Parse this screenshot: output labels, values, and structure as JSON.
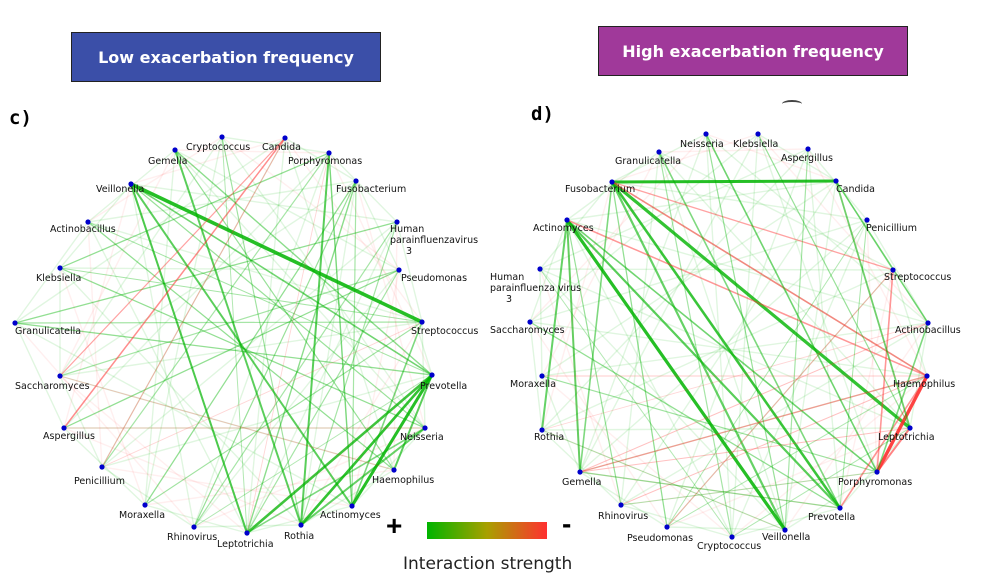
{
  "colors": {
    "low_banner": "#3b4fa8",
    "high_banner": "#a0399a",
    "node": "#0000cc",
    "positive": "#00b400",
    "negative": "#ff3030"
  },
  "banners": {
    "low": "Low exacerbation frequency",
    "high": "High exacerbation frequency"
  },
  "panels": {
    "c": {
      "label": "c)",
      "nodes": [
        "Cryptococcus",
        "Candida",
        "Porphyromonas",
        "Fusobacterium",
        "Human\nparainfluenzavirus\n3",
        "Pseudomonas",
        "Streptococcus",
        "Prevotella",
        "Neisseria",
        "Haemophilus",
        "Actinomyces",
        "Rothia",
        "Leptotrichia",
        "Rhinovirus",
        "Moraxella",
        "Penicillium",
        "Aspergillus",
        "Saccharomyces",
        "Granulicatella",
        "Klebsiella",
        "Actinobacillus",
        "Veillonella",
        "Gemella"
      ]
    },
    "d": {
      "label": "d)",
      "nodes": [
        "Klebsiella",
        "Aspergillus",
        "Candida",
        "Penicillium",
        "Streptococcus",
        "Actinobacillus",
        "Haemophilus",
        "Leptotrichia",
        "Porphyromonas",
        "Prevotella",
        "Veillonella",
        "Cryptococcus",
        "Pseudomonas",
        "Rhinovirus",
        "Gemella",
        "Rothia",
        "Moraxella",
        "Saccharomyces",
        "Human\nparainfluenza virus\n3",
        "Actinomyces",
        "Fusobacterium",
        "Granulicatella",
        "Neisseria"
      ]
    }
  },
  "legend": {
    "plus": "+",
    "minus": "-",
    "title": "Interaction strength"
  }
}
